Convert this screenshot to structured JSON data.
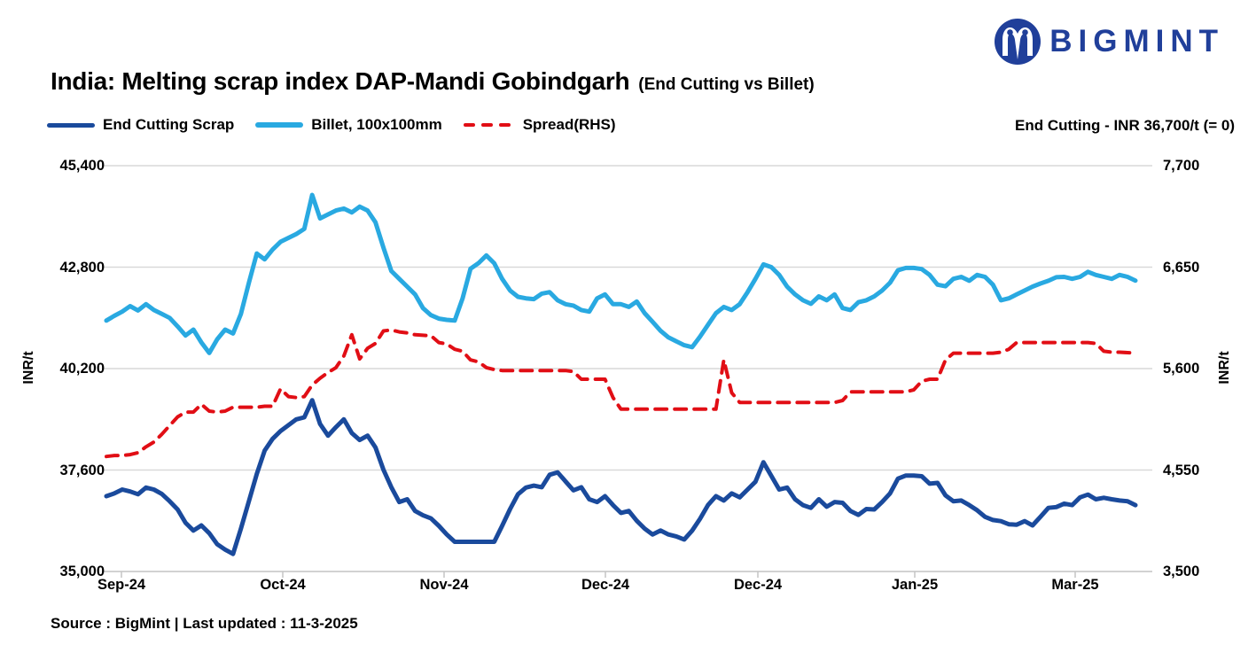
{
  "logo": {
    "brand": "BIGMINT",
    "color": "#203f9a"
  },
  "title": {
    "main": "India: Melting scrap index DAP-Mandi Gobindgarh",
    "suffix": "(End Cutting vs Billet)"
  },
  "legend": [
    {
      "label": "End Cutting Scrap",
      "color": "#1a4a9c",
      "style": "solid"
    },
    {
      "label": "Billet, 100x100mm",
      "color": "#29a9e1",
      "style": "solid"
    },
    {
      "label": "Spread(RHS)",
      "color": "#e10e15",
      "style": "dashed"
    }
  ],
  "annotation": "End Cutting - INR 36,700/t (= 0)",
  "axes": {
    "left_axis_title": "INR/t",
    "right_axis_title": "INR/t",
    "left_tick_labels": [
      "45,400",
      "42,800",
      "40,200",
      "37,600",
      "35,000"
    ],
    "right_tick_labels": [
      "7,700",
      "6,650",
      "5,600",
      "4,550",
      "3,500"
    ],
    "x_tick_labels": [
      "Sep-24",
      "Oct-24",
      "Nov-24",
      "Dec-24",
      "Dec-24",
      "Jan-25",
      "Mar-25"
    ]
  },
  "source": "Source : BigMint | Last updated : 11-3-2025",
  "colors": {
    "grid": "#d9d9d9",
    "axis": "#c4c4c4",
    "text": "#000000"
  },
  "chart_data": {
    "type": "line",
    "title": "India: Melting scrap index DAP-Mandi Gobindgarh (End Cutting vs Billet)",
    "ylabel_left": "INR/t",
    "ylabel_right": "INR/t",
    "ylim_left": [
      35000,
      45400
    ],
    "ylim_right": [
      3500,
      7700
    ],
    "grid": true,
    "legend_position": "top-left",
    "x_tick_labels": [
      "Sep-24",
      "Oct-24",
      "Nov-24",
      "Dec-24",
      "Dec-24",
      "Jan-25",
      "Mar-25"
    ],
    "series": [
      {
        "name": "Billet, 100x100mm",
        "axis": "left",
        "color": "#29a9e1",
        "style": "solid",
        "values": [
          41430,
          41550,
          41660,
          41800,
          41690,
          41850,
          41700,
          41600,
          41500,
          41280,
          41050,
          41200,
          40870,
          40600,
          40950,
          41200,
          41100,
          41600,
          42400,
          43150,
          43000,
          43250,
          43450,
          43550,
          43650,
          43780,
          44650,
          44050,
          44150,
          44250,
          44300,
          44200,
          44350,
          44250,
          43950,
          43300,
          42700,
          42500,
          42300,
          42100,
          41750,
          41570,
          41480,
          41450,
          41430,
          42000,
          42760,
          42900,
          43100,
          42900,
          42500,
          42200,
          42040,
          42000,
          41980,
          42120,
          42160,
          41950,
          41850,
          41815,
          41700,
          41660,
          42000,
          42100,
          41850,
          41850,
          41780,
          41920,
          41620,
          41400,
          41170,
          41000,
          40900,
          40800,
          40750,
          41020,
          41320,
          41620,
          41780,
          41700,
          41850,
          42160,
          42500,
          42870,
          42800,
          42600,
          42300,
          42100,
          41950,
          41860,
          42050,
          41950,
          42100,
          41750,
          41700,
          41900,
          41950,
          42050,
          42200,
          42400,
          42720,
          42780,
          42780,
          42750,
          42600,
          42350,
          42310,
          42500,
          42550,
          42450,
          42600,
          42550,
          42350,
          41950,
          42000,
          42100,
          42200,
          42300,
          42380,
          42450,
          42540,
          42550,
          42500,
          42550,
          42680,
          42600,
          42550,
          42500,
          42600,
          42550,
          42455
        ]
      },
      {
        "name": "End Cutting Scrap",
        "axis": "left",
        "color": "#1a4a9c",
        "style": "solid",
        "values": [
          36930,
          37000,
          37100,
          37050,
          36980,
          37150,
          37100,
          36990,
          36800,
          36590,
          36250,
          36050,
          36180,
          35980,
          35700,
          35560,
          35450,
          36100,
          36800,
          37500,
          38100,
          38400,
          38600,
          38750,
          38900,
          38950,
          39390,
          38780,
          38480,
          38700,
          38900,
          38550,
          38370,
          38480,
          38180,
          37610,
          37160,
          36780,
          36850,
          36550,
          36440,
          36360,
          36170,
          35950,
          35760,
          35760,
          35760,
          35760,
          35760,
          35760,
          36170,
          36600,
          36980,
          37150,
          37200,
          37160,
          37480,
          37540,
          37310,
          37080,
          37160,
          36850,
          36780,
          36930,
          36700,
          36500,
          36550,
          36300,
          36100,
          35950,
          36050,
          35950,
          35900,
          35820,
          36050,
          36350,
          36700,
          36930,
          36820,
          37000,
          36900,
          37100,
          37300,
          37800,
          37450,
          37100,
          37150,
          36850,
          36700,
          36630,
          36850,
          36660,
          36780,
          36760,
          36550,
          36450,
          36600,
          36590,
          36780,
          37000,
          37380,
          37460,
          37460,
          37440,
          37250,
          37270,
          36950,
          36800,
          36820,
          36700,
          36570,
          36400,
          36320,
          36290,
          36210,
          36200,
          36290,
          36180,
          36400,
          36630,
          36650,
          36740,
          36700,
          36900,
          36970,
          36850,
          36890,
          36850,
          36820,
          36800,
          36700
        ]
      },
      {
        "name": "Spread(RHS)",
        "axis": "right",
        "color": "#e10e15",
        "style": "dashed",
        "values": [
          4690,
          4700,
          4700,
          4710,
          4730,
          4790,
          4840,
          4920,
          5010,
          5100,
          5150,
          5150,
          5230,
          5160,
          5150,
          5160,
          5200,
          5200,
          5200,
          5200,
          5210,
          5210,
          5390,
          5310,
          5300,
          5310,
          5430,
          5500,
          5560,
          5610,
          5730,
          5950,
          5700,
          5810,
          5860,
          5990,
          6000,
          5980,
          5970,
          5950,
          5945,
          5940,
          5870,
          5855,
          5800,
          5780,
          5690,
          5670,
          5610,
          5590,
          5580,
          5580,
          5580,
          5580,
          5580,
          5580,
          5580,
          5580,
          5580,
          5570,
          5490,
          5490,
          5490,
          5490,
          5300,
          5180,
          5180,
          5180,
          5180,
          5180,
          5180,
          5180,
          5180,
          5180,
          5180,
          5180,
          5180,
          5180,
          5690,
          5350,
          5250,
          5250,
          5250,
          5250,
          5250,
          5250,
          5250,
          5250,
          5250,
          5250,
          5250,
          5250,
          5250,
          5270,
          5360,
          5360,
          5360,
          5360,
          5360,
          5360,
          5360,
          5360,
          5380,
          5470,
          5490,
          5490,
          5690,
          5760,
          5760,
          5760,
          5760,
          5760,
          5760,
          5770,
          5800,
          5870,
          5870,
          5870,
          5870,
          5870,
          5870,
          5870,
          5870,
          5870,
          5870,
          5860,
          5780,
          5770,
          5770,
          5765,
          5760
        ]
      }
    ]
  }
}
